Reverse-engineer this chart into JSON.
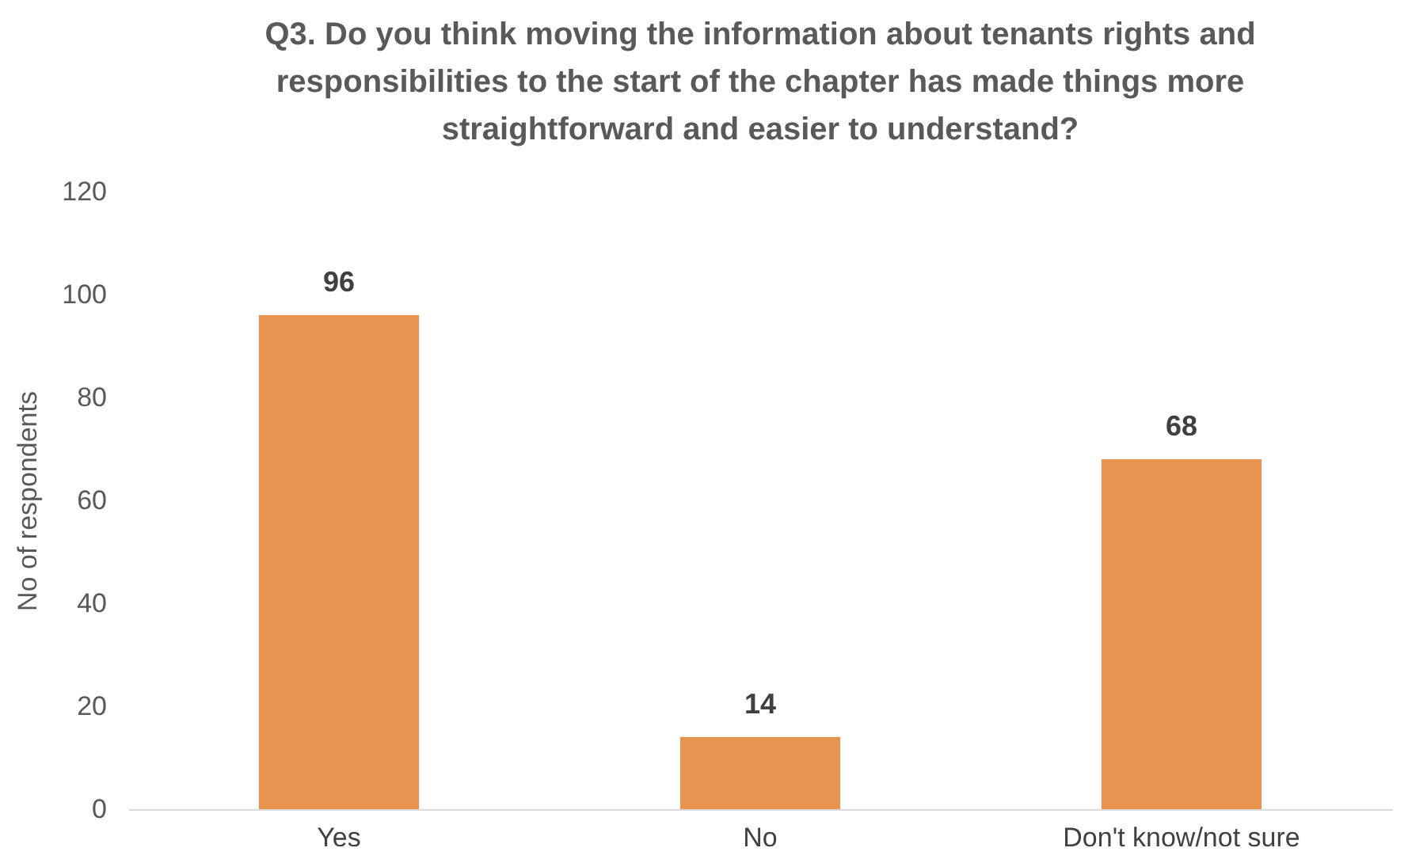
{
  "chart_data": {
    "type": "bar",
    "title": "Q3. Do you think moving the information about tenants rights and responsibilities to the start of the chapter has made things more straightforward and easier to understand?",
    "categories": [
      "Yes",
      "No",
      "Don't know/not sure"
    ],
    "values": [
      96,
      14,
      68
    ],
    "color": "#e8934f",
    "ylabel": "No of respondents",
    "ylim": [
      0,
      120
    ],
    "yticks": [
      0,
      20,
      40,
      60,
      80,
      100,
      120
    ],
    "grid": false,
    "data_labels": true
  }
}
